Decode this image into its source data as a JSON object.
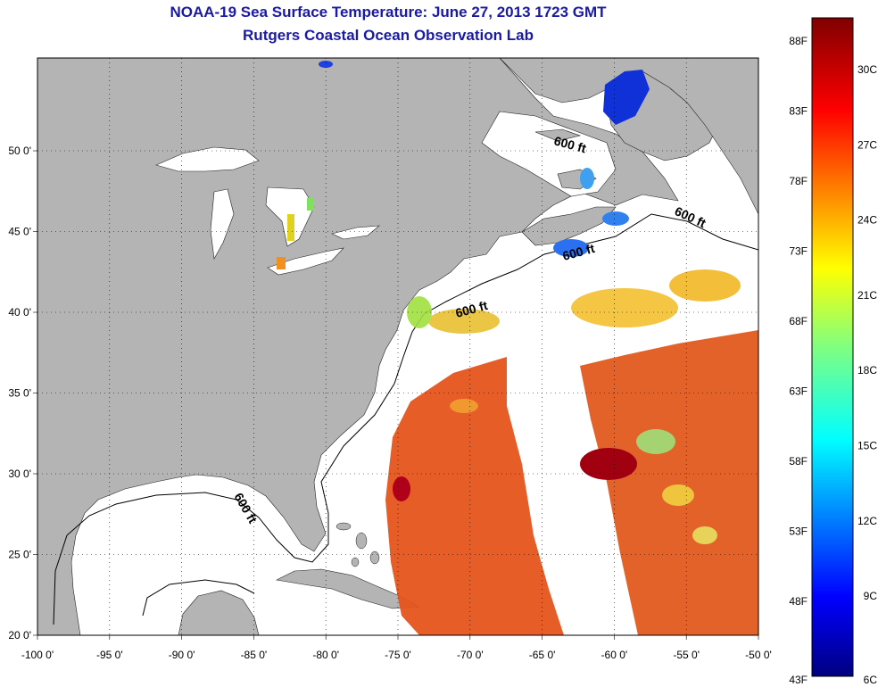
{
  "header": {
    "title": "NOAA-19 Sea Surface Temperature:  June 27, 2013 1723 GMT",
    "subtitle": "Rutgers Coastal Ocean Observation Lab"
  },
  "axes": {
    "lon_ticks": [
      "-100 0'",
      "-95 0'",
      "-90 0'",
      "-85 0'",
      "-80 0'",
      "-75 0'",
      "-70 0'",
      "-65 0'",
      "-60 0'",
      "-55 0'",
      "-50 0'"
    ],
    "lat_ticks": [
      "20 0'",
      "25 0'",
      "30 0'",
      "35 0'",
      "40 0'",
      "45 0'",
      "50 0'"
    ]
  },
  "depth_contour_label": "600 ft",
  "colorbar": {
    "f_labels": [
      "88F",
      "83F",
      "78F",
      "73F",
      "68F",
      "63F",
      "58F",
      "53F",
      "48F",
      "43F"
    ],
    "c_labels": [
      "30C",
      "27C",
      "24C",
      "21C",
      "18C",
      "15C",
      "12C",
      "9C",
      "6C"
    ]
  },
  "colors": {
    "land": "#b4b4b4",
    "title": "#1a1aa6",
    "warm": "#e8501c",
    "hot": "#a00010",
    "cool": "#1040e0"
  }
}
